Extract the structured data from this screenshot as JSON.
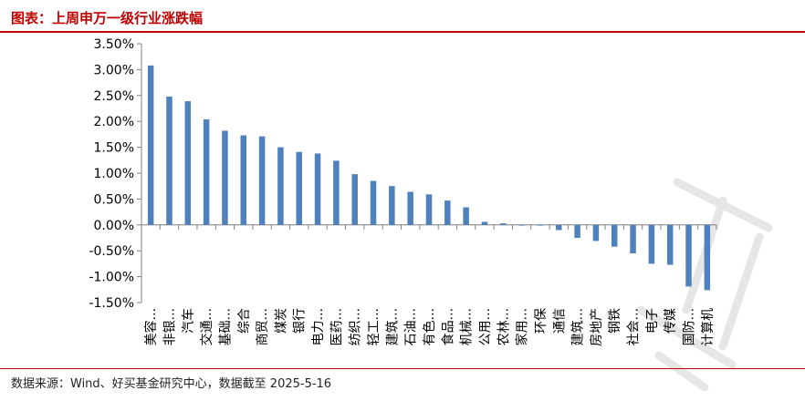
{
  "header": {
    "title": "图表：上周申万一级行业涨跌幅"
  },
  "footer": {
    "source": "数据来源：Wind、好买基金研究中心，数据截至 2025-5-16"
  },
  "colors": {
    "accent": "#c00000",
    "bar": "#4f81bd"
  },
  "chart_data": {
    "type": "bar",
    "title": "",
    "xlabel": "",
    "ylabel": "",
    "ylim": [
      -1.5,
      3.5
    ],
    "yticks": [
      "3.50%",
      "3.00%",
      "2.50%",
      "2.00%",
      "1.50%",
      "1.00%",
      "0.50%",
      "0.00%",
      "-0.50%",
      "-1.00%",
      "-1.50%"
    ],
    "grid": false,
    "categories": [
      "美容...",
      "非银...",
      "汽车",
      "交通...",
      "基础...",
      "综合",
      "商贸...",
      "煤炭",
      "银行",
      "电力...",
      "医药...",
      "纺织...",
      "轻工...",
      "建筑...",
      "石油...",
      "有色...",
      "食品...",
      "机械...",
      "公用...",
      "农林...",
      "家用...",
      "环保",
      "通信",
      "建筑...",
      "房地产",
      "钢铁",
      "社会...",
      "电子",
      "传媒",
      "国防...",
      "计算机"
    ],
    "values": [
      3.08,
      2.48,
      2.39,
      2.04,
      1.82,
      1.73,
      1.71,
      1.5,
      1.41,
      1.38,
      1.24,
      0.98,
      0.85,
      0.75,
      0.64,
      0.59,
      0.47,
      0.34,
      0.06,
      0.03,
      -0.01,
      -0.01,
      -0.1,
      -0.25,
      -0.31,
      -0.42,
      -0.55,
      -0.75,
      -0.77,
      -1.19,
      -1.26
    ]
  }
}
